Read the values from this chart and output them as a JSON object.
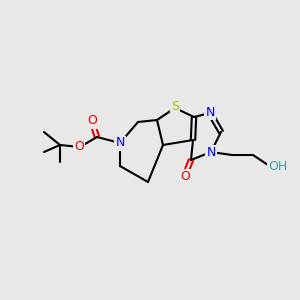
{
  "bg_color": "#e8e8e8",
  "atom_colors": {
    "C": "#000000",
    "N": "#0000ee",
    "O": "#ee0000",
    "S": "#bbbb00",
    "H": "#40a0a0"
  },
  "figsize": [
    3.0,
    3.0
  ],
  "dpi": 100
}
